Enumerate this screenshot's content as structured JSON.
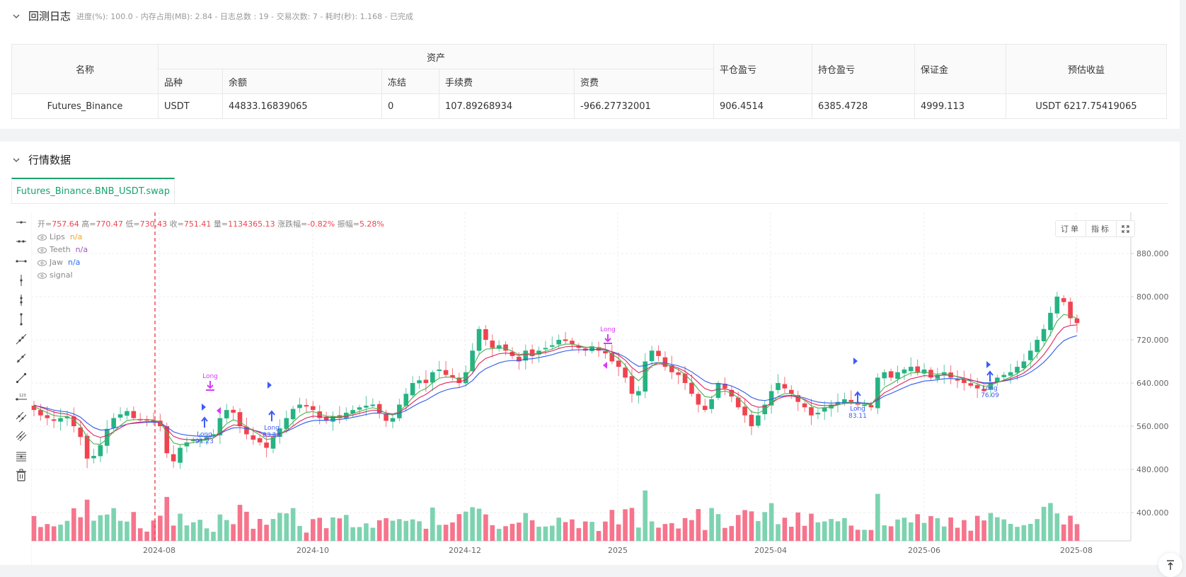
{
  "log_section": {
    "title": "回测日志",
    "status": "进度(%): 100.0 - 内存占用(MB): 2.84 - 日志总数 : 19 - 交易次数: 7 - 耗时(秒): 1.168 - 已完成"
  },
  "assets_table": {
    "headers": {
      "name": "名称",
      "assets_group": "资产",
      "symbol": "品种",
      "balance": "余额",
      "frozen": "冻结",
      "fee": "手续费",
      "funding": "资费",
      "closed_pnl": "平仓盈亏",
      "position_pnl": "持仓盈亏",
      "margin": "保证金",
      "est_profit": "预估收益"
    },
    "rows": [
      {
        "name": "Futures_Binance",
        "symbol": "USDT",
        "balance": "44833.16839065",
        "frozen": "0",
        "fee": "107.89268934",
        "funding": "-966.27732001",
        "closed_pnl": "906.4514",
        "position_pnl": "6385.4728",
        "margin": "4999.113",
        "est_profit": "USDT 6217.75419065"
      }
    ]
  },
  "market_section": {
    "title": "行情数据",
    "tabs": [
      {
        "label": "Futures_Binance.BNB_USDT.swap",
        "active": true
      }
    ]
  },
  "chart_header": {
    "open_label": "开=",
    "open": "757.64",
    "high_label": "高=",
    "high": "770.47",
    "low_label": "低=",
    "low": "730.43",
    "close_label": "收=",
    "close": "751.41",
    "vol_label": "量=",
    "vol": "1134365.13",
    "chg_label": "涨跌幅=",
    "chg": "-0.82%",
    "amp_label": "振幅=",
    "amp": "5.28%"
  },
  "indicators": [
    {
      "name": "Lips",
      "value": "n/a",
      "color": "#f5a623"
    },
    {
      "name": "Teeth",
      "value": "n/a",
      "color": "#9b59b6"
    },
    {
      "name": "Jaw",
      "value": "n/a",
      "color": "#2f6ff0"
    },
    {
      "name": "signal",
      "value": "",
      "color": "#888888"
    }
  ],
  "chart_buttons": {
    "orders": "订单",
    "indicators": "指标"
  },
  "colors": {
    "up": "#26b384",
    "down": "#f0434f",
    "lips": "#4caf50",
    "teeth": "#e0245e",
    "jaw": "#2f5bea",
    "signal_long": "#3d5afe",
    "signal_exit": "#d63af9"
  },
  "chart_data": {
    "type": "candlestick",
    "title": "Futures_Binance.BNB_USDT.swap",
    "y_ticks": [
      "880.000",
      "800.000",
      "720.000",
      "640.000",
      "560.000",
      "480.000",
      "400.000"
    ],
    "ylim": [
      355,
      900
    ],
    "x_ticks": [
      "2024-08",
      "2024-10",
      "2024-12",
      "2025",
      "2025-04",
      "2025-06",
      "2025-08"
    ],
    "series_names": [
      "Lips",
      "Teeth",
      "Jaw",
      "signal"
    ],
    "annotations": [
      {
        "type": "Long",
        "value": "91.23",
        "x_label": "2024-08/09"
      },
      {
        "type": "Long",
        "value": "83.13",
        "x_label": "2024-09"
      },
      {
        "type": "Long",
        "value": "83.11",
        "x_label": "2025-05"
      },
      {
        "type": "Long",
        "value": "76.09",
        "x_label": "2025-07"
      },
      {
        "type": "Long exit",
        "value": "",
        "x_label": "2024-08/09"
      },
      {
        "type": "Long exit",
        "value": "",
        "x_label": "2024-12/2025-01"
      }
    ],
    "close_prices_approx": [
      590,
      580,
      575,
      570,
      575,
      578,
      560,
      540,
      500,
      505,
      525,
      555,
      575,
      582,
      588,
      575,
      572,
      573,
      570,
      560,
      510,
      495,
      520,
      530,
      535,
      535,
      540,
      545,
      575,
      590,
      585,
      560,
      545,
      535,
      530,
      520,
      540,
      556,
      575,
      592,
      600,
      598,
      590,
      575,
      570,
      578,
      575,
      585,
      590,
      595,
      598,
      600,
      585,
      570,
      575,
      600,
      620,
      640,
      645,
      640,
      660,
      665,
      655,
      650,
      640,
      660,
      700,
      740,
      720,
      705,
      710,
      700,
      690,
      680,
      700,
      690,
      700,
      705,
      710,
      720,
      718,
      712,
      705,
      700,
      708,
      700,
      695,
      680,
      670,
      650,
      620,
      625,
      680,
      700,
      690,
      670,
      660,
      655,
      640,
      620,
      600,
      590,
      610,
      640,
      630,
      615,
      595,
      580,
      560,
      580,
      600,
      625,
      640,
      630,
      620,
      605,
      595,
      580,
      585,
      595,
      600,
      605,
      610,
      605,
      600,
      600,
      595,
      650,
      660,
      650,
      660,
      665,
      670,
      660,
      665,
      650,
      655,
      660,
      650,
      645,
      640,
      635,
      630,
      625,
      640,
      650,
      655,
      660,
      670,
      680,
      700,
      720,
      740,
      770,
      800,
      790,
      760,
      751
    ]
  },
  "scroll_top": {
    "label": "回到顶部"
  }
}
